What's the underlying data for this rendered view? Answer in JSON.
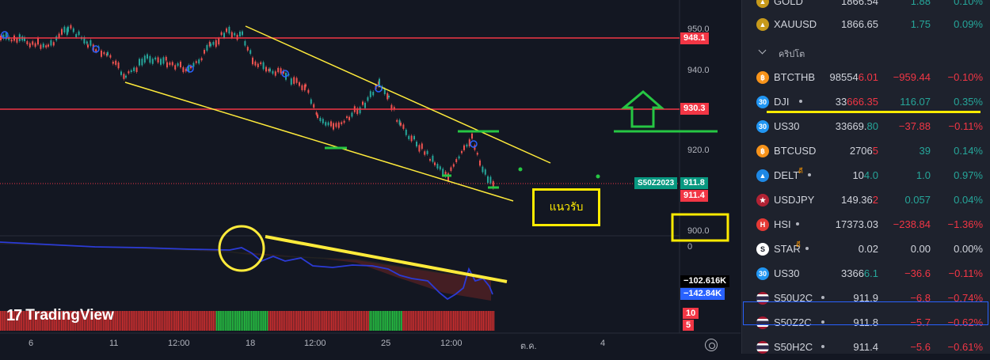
{
  "chart": {
    "price_levels": [
      {
        "value": "948.1",
        "color": "#f23645"
      },
      {
        "value": "930.3",
        "color": "#f23645"
      },
      {
        "value": "911.4",
        "color": "#f23645"
      }
    ],
    "axis_labels": [
      "950.0",
      "940.0",
      "920.0",
      "900.0",
      "0"
    ],
    "last_price": {
      "symbol": "S50Z2023",
      "value": "911.8",
      "color": "#089981"
    },
    "indicator_values": [
      {
        "value": "−102.616K",
        "bg": "#000000"
      },
      {
        "value": "−142.84K",
        "bg": "#2962ff"
      }
    ],
    "volume_values": [
      "10",
      "5"
    ],
    "x_labels": [
      "6",
      "11",
      "12:00",
      "18",
      "12:00",
      "25",
      "12:00",
      "ต.ค.",
      "4"
    ],
    "logo_text": "TradingView",
    "annotation_text": "แนวรับ",
    "annotation_color": "#ffeb00"
  },
  "watchlist": {
    "top_rows": [
      {
        "symbol": "GOLD",
        "c1": "1866.54",
        "c2": "1.88",
        "c3": "0.10%",
        "icon": "gold-icon",
        "icon_color": "#c79a1b",
        "tone": "pos"
      },
      {
        "symbol": "XAUUSD",
        "c1": "1866.65",
        "c2": "1.75",
        "c3": "0.09%",
        "icon": "gold-icon",
        "icon_color": "#c79a1b",
        "tone": "pos"
      }
    ],
    "section_label": "คริปโต",
    "rows": [
      {
        "symbol": "BTCTHB",
        "c1a": "98554",
        "c1b": "6.01",
        "c2": "−959.44",
        "c3": "−0.10%",
        "icon": "bitcoin-icon",
        "icon_label": "฿",
        "icon_color": "#f7931a",
        "tone": "neg",
        "hl": "neg"
      },
      {
        "symbol": "DJI",
        "c1a": "33",
        "c1b": "666.35",
        "c2": "116.07",
        "c3": "0.35%",
        "icon": "index-icon",
        "icon_label": "30",
        "icon_color": "#2196f3",
        "tone": "pos",
        "hl": "neg",
        "dot": true
      },
      {
        "symbol": "US30",
        "c1a": "33669.",
        "c1b": "80",
        "c2": "−37.88",
        "c3": "−0.11%",
        "icon": "index-icon",
        "icon_label": "30",
        "icon_color": "#2196f3",
        "tone": "neg",
        "hl": "pos"
      },
      {
        "symbol": "BTCUSD",
        "c1a": "2706",
        "c1b": "5",
        "c2": "39",
        "c3": "0.14%",
        "icon": "bitcoin-icon",
        "icon_label": "฿",
        "icon_color": "#f7931a",
        "tone": "pos",
        "hl": "neg"
      },
      {
        "symbol": "DELT",
        "c1a": "10",
        "c1b": "4.0",
        "c2": "1.0",
        "c3": "0.97%",
        "icon": "delta-icon",
        "icon_label": "▲",
        "icon_color": "#1e88e5",
        "tone": "pos",
        "hl": "pos",
        "dot": true,
        "flag": "ดี"
      },
      {
        "symbol": "USDJPY",
        "c1a": "149.36",
        "c1b": "2",
        "c2": "0.057",
        "c3": "0.04%",
        "icon": "flag-us-icon",
        "icon_label": "★",
        "icon_color": "#b22234",
        "tone": "pos",
        "hl": "neg"
      },
      {
        "symbol": "HSI",
        "c1a": "17373.03",
        "c1b": "",
        "c2": "−238.84",
        "c3": "−1.36%",
        "icon": "hsi-icon",
        "icon_label": "H",
        "icon_color": "#e53935",
        "tone": "neg",
        "hl": "neg",
        "dot": true
      },
      {
        "symbol": "STAR",
        "c1a": "0.02",
        "c1b": "",
        "c2": "0.00",
        "c3": "0.00%",
        "icon": "star-icon",
        "icon_label": "S",
        "icon_color": "#ffffff",
        "tone": "neu",
        "hl": "neu",
        "dot": true,
        "flag": "ดี"
      },
      {
        "symbol": "US30",
        "c1a": "3366",
        "c1b": "6.1",
        "c2": "−36.6",
        "c3": "−0.11%",
        "icon": "index-icon",
        "icon_label": "30",
        "icon_color": "#2196f3",
        "tone": "neg",
        "hl": "pos"
      },
      {
        "symbol": "S50U2C",
        "c1a": "911.9",
        "c1b": "",
        "c2": "−6.8",
        "c3": "−0.74%",
        "icon": "flag-th-icon",
        "icon_label": "",
        "icon_color": "#a51931",
        "tone": "neg",
        "hl": "neg",
        "dot": true
      },
      {
        "symbol": "S50Z2C",
        "c1a": "911.8",
        "c1b": "",
        "c2": "−5.7",
        "c3": "−0.62%",
        "icon": "flag-th-icon",
        "icon_label": "",
        "icon_color": "#a51931",
        "tone": "neg",
        "hl": "neg",
        "dot": true
      },
      {
        "symbol": "S50H2C",
        "c1a": "911.4",
        "c1b": "",
        "c2": "−5.6",
        "c3": "−0.61%",
        "icon": "flag-th-icon",
        "icon_label": "",
        "icon_color": "#a51931",
        "tone": "neg",
        "hl": "neg",
        "dot": true
      }
    ]
  }
}
